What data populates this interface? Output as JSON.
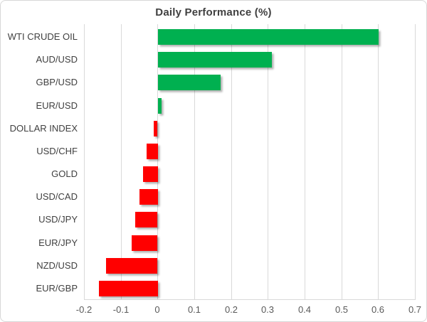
{
  "chart_data": {
    "type": "bar",
    "orientation": "horizontal",
    "title": "Daily Performance (%)",
    "categories": [
      "WTI CRUDE OIL",
      "AUD/USD",
      "GBP/USD",
      "EUR/USD",
      "DOLLAR INDEX",
      "USD/CHF",
      "GOLD",
      "USD/CAD",
      "USD/JPY",
      "EUR/JPY",
      "NZD/USD",
      "EUR/GBP"
    ],
    "values": [
      0.6,
      0.31,
      0.17,
      0.01,
      -0.01,
      -0.03,
      -0.04,
      -0.05,
      -0.06,
      -0.07,
      -0.14,
      -0.16
    ],
    "xlabel": "",
    "ylabel": "",
    "xlim": [
      -0.2,
      0.7
    ],
    "xticks": [
      -0.2,
      -0.1,
      0,
      0.1,
      0.2,
      0.3,
      0.4,
      0.5,
      0.6,
      0.7
    ],
    "xtick_labels": [
      "-0.2",
      "-0.1",
      "0",
      "0.1",
      "0.2",
      "0.3",
      "0.4",
      "0.5",
      "0.6",
      "0.7"
    ],
    "grid": true,
    "legend": false,
    "bar_colors": {
      "positive": "#00B050",
      "negative": "#FF0000"
    }
  },
  "style": {
    "background": "#FFFFFF",
    "chart_border_color": "#D7D7D7",
    "grid_color": "#D9D9D9",
    "axis_line_color": "#D9D9D9",
    "title_color": "#404040",
    "category_label_color": "#404040",
    "tick_label_color": "#595959"
  }
}
